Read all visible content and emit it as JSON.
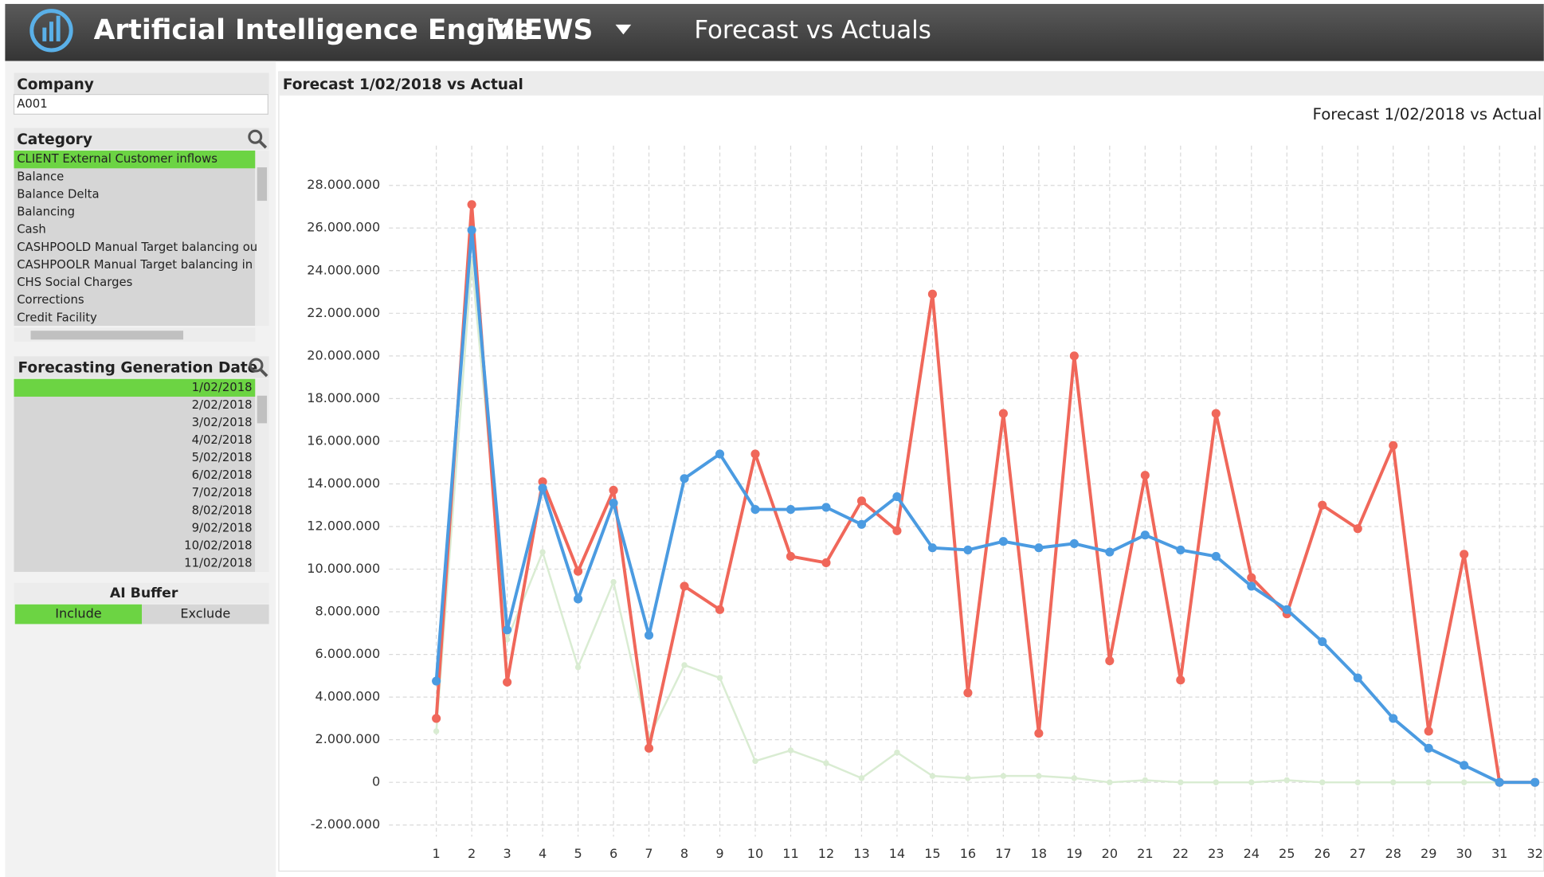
{
  "header": {
    "app_title": "Artificial Intelligence Engine",
    "views": "VIEWS",
    "page_title": "Forecast vs Actuals"
  },
  "filters": {
    "company": {
      "label": "Company",
      "value": "A001"
    },
    "category": {
      "label": "Category",
      "selected": 0,
      "items": [
        "CLIENT External Customer inflows",
        "Balance",
        "Balance Delta",
        "Balancing",
        "Cash",
        "CASHPOOLD Manual Target balancing ou",
        "CASHPOOLR Manual Target balancing in",
        "CHS Social Charges",
        "Corrections",
        "Credit Facility"
      ]
    },
    "generation_date": {
      "label": "Forecasting Generation Date",
      "selected": 0,
      "items": [
        "1/02/2018",
        "2/02/2018",
        "3/02/2018",
        "4/02/2018",
        "5/02/2018",
        "6/02/2018",
        "7/02/2018",
        "8/02/2018",
        "9/02/2018",
        "10/02/2018",
        "11/02/2018"
      ]
    },
    "ai_buffer": {
      "label": "AI Buffer",
      "selected": 0,
      "options": [
        "Include",
        "Exclude"
      ]
    }
  },
  "panel_title": "Forecast 1/02/2018 vs Actual",
  "chart_data": {
    "type": "line",
    "title": "Forecast 1/02/2018 vs Actual",
    "x": [
      1,
      2,
      3,
      4,
      5,
      6,
      7,
      8,
      9,
      10,
      11,
      12,
      13,
      14,
      15,
      16,
      17,
      18,
      19,
      20,
      21,
      22,
      23,
      24,
      25,
      26,
      27,
      28,
      29,
      30,
      31,
      32
    ],
    "series": [
      {
        "color": "#d9ecd2",
        "values": [
          2400000,
          24400000,
          6700000,
          10800000,
          5400000,
          9400000,
          2100000,
          5500000,
          4900000,
          1000000,
          1500000,
          900000,
          200000,
          1400000,
          300000,
          200000,
          300000,
          300000,
          200000,
          0,
          100000,
          0,
          0,
          0,
          100000,
          0,
          0,
          0,
          0,
          0,
          0,
          0
        ]
      },
      {
        "color": "#f0675a",
        "values": [
          3000000,
          27100000,
          4700000,
          14100000,
          9900000,
          13700000,
          1600000,
          9200000,
          8100000,
          15400000,
          10600000,
          10300000,
          13200000,
          11800000,
          22900000,
          4200000,
          17300000,
          2300000,
          20000000,
          5700000,
          14400000,
          4800000,
          17300000,
          9600000,
          7900000,
          13000000,
          11900000,
          15800000,
          2400000,
          10700000,
          0,
          0
        ]
      },
      {
        "color": "#4b9be1",
        "values": [
          4750000,
          25900000,
          7150000,
          13800000,
          8600000,
          13100000,
          6900000,
          14250000,
          15400000,
          12800000,
          12800000,
          12900000,
          12100000,
          13400000,
          11000000,
          10900000,
          11300000,
          11000000,
          11200000,
          10800000,
          11600000,
          10900000,
          10600000,
          9200000,
          8100000,
          6600000,
          4900000,
          3000000,
          1600000,
          800000,
          0,
          0
        ]
      }
    ],
    "xlim": [
      0,
      33
    ],
    "xticks": [
      1,
      2,
      3,
      4,
      5,
      6,
      7,
      8,
      9,
      10,
      11,
      12,
      13,
      14,
      15,
      16,
      17,
      18,
      19,
      20,
      21,
      22,
      23,
      24,
      25,
      26,
      27,
      28,
      29,
      30,
      31,
      32
    ],
    "ylim": [
      -2500000,
      30000000
    ],
    "yticks": [
      {
        "value": -2000000,
        "label": "-2.000.000"
      },
      0,
      {
        "value": 2000000,
        "label": "2.000.000"
      },
      {
        "value": 4000000,
        "label": "4.000.000"
      },
      {
        "value": 6000000,
        "label": "6.000.000"
      },
      {
        "value": 8000000,
        "label": "8.000.000"
      },
      {
        "value": 10000000,
        "label": "10.000.000"
      },
      {
        "value": 12000000,
        "label": "12.000.000"
      },
      {
        "value": 14000000,
        "label": "14.000.000"
      },
      {
        "value": 16000000,
        "label": "16.000.000"
      },
      {
        "value": 18000000,
        "label": "18.000.000"
      },
      {
        "value": 20000000,
        "label": "20.000.000"
      },
      {
        "value": 22000000,
        "label": "22.000.000"
      },
      {
        "value": 24000000,
        "label": "24.000.000"
      },
      {
        "value": 26000000,
        "label": "26.000.000"
      },
      {
        "value": 28000000,
        "label": "28.000.000"
      }
    ],
    "grid": true
  }
}
